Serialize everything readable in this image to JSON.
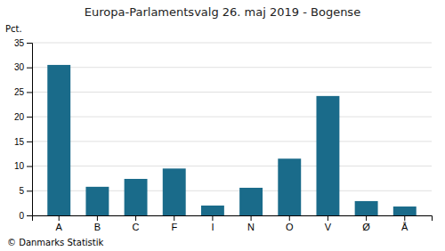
{
  "chart_data": {
    "type": "bar",
    "title": "Europa-Parlamentsvalg 26. maj 2019 - Bogense",
    "ylabel": "Pct.",
    "footer": "© Danmarks Statistik",
    "categories": [
      "A",
      "B",
      "C",
      "F",
      "I",
      "N",
      "O",
      "V",
      "Ø",
      "Å"
    ],
    "values": [
      30.5,
      5.8,
      7.4,
      9.5,
      2.0,
      5.6,
      11.5,
      24.2,
      2.9,
      1.8
    ],
    "color": "#1a6b8a",
    "ylim": [
      0,
      35
    ],
    "yticks": [
      0,
      5,
      10,
      15,
      20,
      25,
      30,
      35
    ],
    "grid": true
  }
}
